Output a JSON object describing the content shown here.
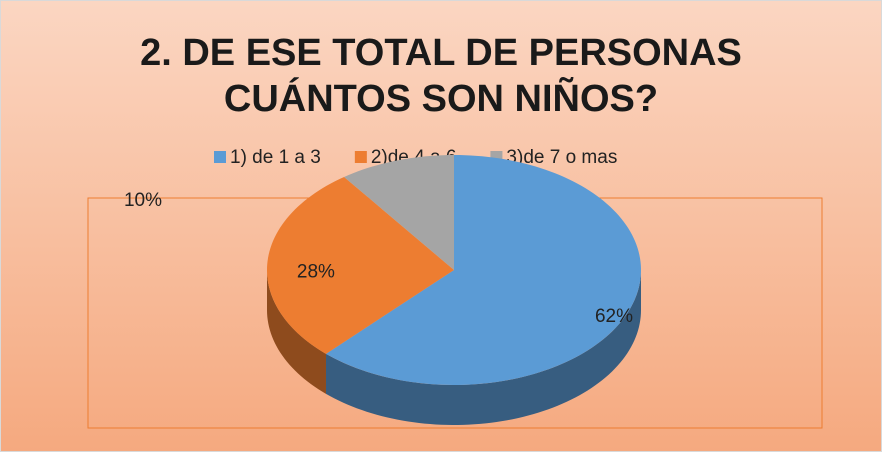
{
  "chart_data": {
    "type": "pie3d",
    "title": "2. DE ESE TOTAL DE PERSONAS CUÁNTOS SON NIÑOS?",
    "categories": [
      "1) de 1 a 3",
      "2)de 4 a 6",
      "3)de 7 o mas"
    ],
    "values": [
      62,
      28,
      10
    ],
    "value_labels": [
      "62%",
      "28%",
      "10%"
    ],
    "colors": [
      "#5b9bd5",
      "#ed7d31",
      "#a5a5a5"
    ],
    "legend": "top"
  }
}
